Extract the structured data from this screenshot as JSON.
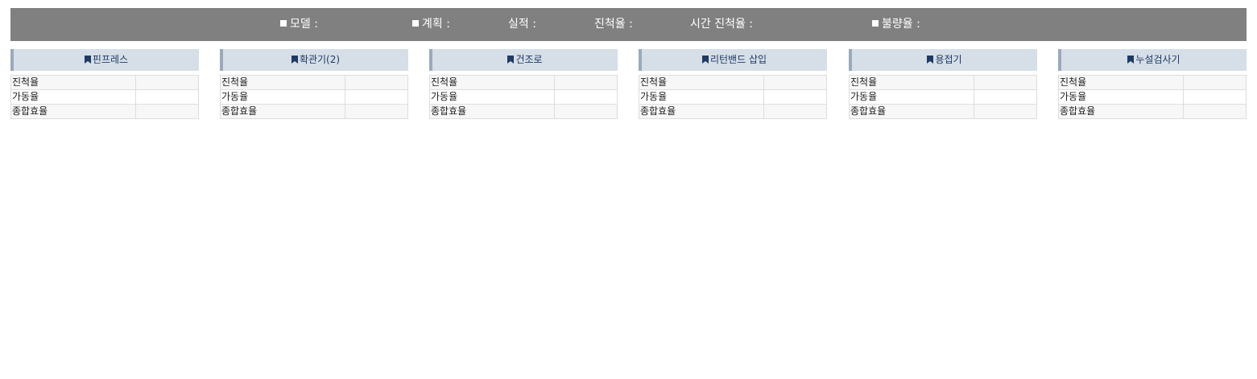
{
  "summary_bar": {
    "model": {
      "label": "모델 :",
      "value": ""
    },
    "plan": {
      "label": "계획 :",
      "value": ""
    },
    "actual": {
      "label": "실적 :",
      "value": ""
    },
    "progress": {
      "label": "진척율 :",
      "value": ""
    },
    "time_progress": {
      "label": "시간 진척율 :",
      "value": ""
    },
    "defect": {
      "label": "불량율 :",
      "value": ""
    }
  },
  "icons": {
    "summary_marker": "square-bullet-icon",
    "panel_marker": "bookmark-icon"
  },
  "colors": {
    "bar_background": "#808080",
    "panel_header_background": "#d6dee8",
    "panel_header_accent": "#99aabb",
    "panel_header_text": "#1f3b63"
  },
  "panels": [
    {
      "title": "핀프레스",
      "rows": [
        {
          "label": "진척율",
          "value": ""
        },
        {
          "label": "가동율",
          "value": ""
        },
        {
          "label": "종합효율",
          "value": ""
        }
      ]
    },
    {
      "title": "확관기(2)",
      "rows": [
        {
          "label": "진척율",
          "value": ""
        },
        {
          "label": "가동율",
          "value": ""
        },
        {
          "label": "종합효율",
          "value": ""
        }
      ]
    },
    {
      "title": "건조로",
      "rows": [
        {
          "label": "진척율",
          "value": ""
        },
        {
          "label": "가동율",
          "value": ""
        },
        {
          "label": "종합효율",
          "value": ""
        }
      ]
    },
    {
      "title": "리턴밴드 삽입",
      "rows": [
        {
          "label": "진척율",
          "value": ""
        },
        {
          "label": "가동율",
          "value": ""
        },
        {
          "label": "종합효율",
          "value": ""
        }
      ]
    },
    {
      "title": "용접기",
      "rows": [
        {
          "label": "진척율",
          "value": ""
        },
        {
          "label": "가동율",
          "value": ""
        },
        {
          "label": "종합효율",
          "value": ""
        }
      ]
    },
    {
      "title": "누설검사기",
      "rows": [
        {
          "label": "진척율",
          "value": ""
        },
        {
          "label": "가동율",
          "value": ""
        },
        {
          "label": "종합효율",
          "value": ""
        }
      ]
    }
  ]
}
